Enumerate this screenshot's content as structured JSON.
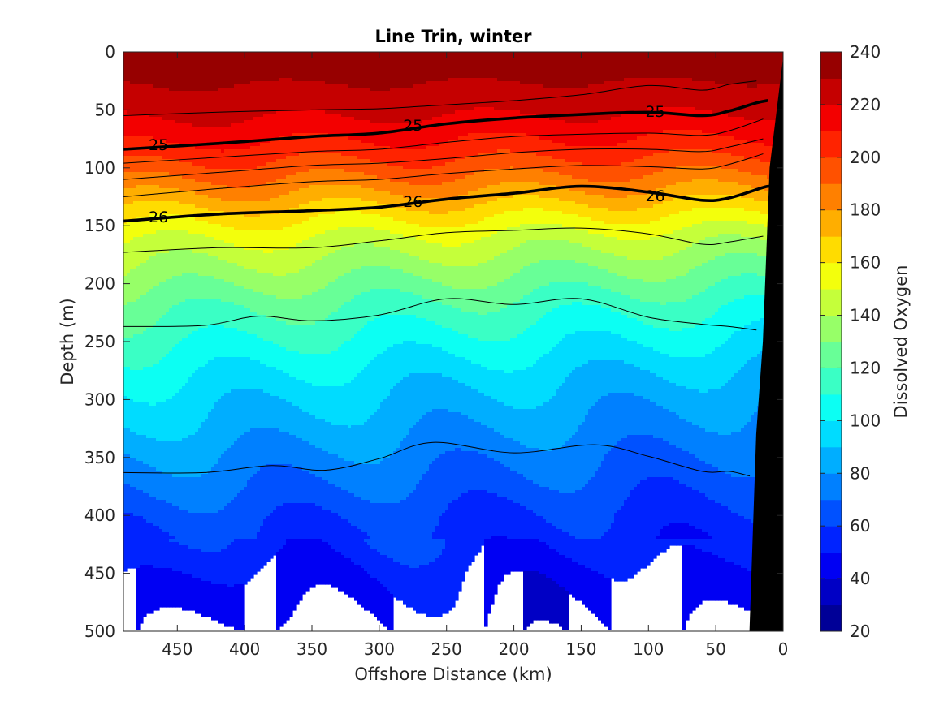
{
  "chart_data": {
    "type": "heatmap",
    "title": "Line Trin, winter",
    "xlabel": "Offshore Distance (km)",
    "ylabel": "Depth (m)",
    "colorbar_label": "Dissolved Oxygen",
    "xlim": [
      490,
      0
    ],
    "ylim": [
      0,
      500
    ],
    "x_direction": "reversed",
    "y_direction": "reversed",
    "x_ticks": [
      450,
      400,
      350,
      300,
      250,
      200,
      150,
      100,
      50,
      0
    ],
    "y_ticks": [
      0,
      50,
      100,
      150,
      200,
      250,
      300,
      350,
      400,
      450,
      500
    ],
    "x_tick_labels": [
      "450",
      "400",
      "350",
      "300",
      "250",
      "200",
      "150",
      "100",
      "50",
      "0"
    ],
    "y_tick_labels": [
      "0",
      "50",
      "100",
      "150",
      "200",
      "250",
      "300",
      "350",
      "400",
      "450",
      "500"
    ],
    "colorbar_ticks": [
      20,
      40,
      60,
      80,
      100,
      120,
      140,
      160,
      180,
      200,
      220,
      240
    ],
    "colorbar_tick_labels": [
      "20",
      "40",
      "60",
      "80",
      "100",
      "120",
      "140",
      "160",
      "180",
      "200",
      "220",
      "240"
    ],
    "colorbar_levels": [
      20,
      30,
      40,
      50,
      60,
      70,
      80,
      90,
      100,
      110,
      120,
      130,
      140,
      150,
      160,
      170,
      180,
      190,
      200,
      210,
      220,
      230,
      240
    ],
    "colormap": "jet",
    "oxygen_profile": {
      "depth": [
        0,
        20,
        40,
        60,
        80,
        100,
        120,
        140,
        160,
        180,
        200,
        220,
        250,
        280,
        300,
        330,
        350,
        380,
        400,
        430,
        450,
        480,
        500
      ],
      "value": [
        236,
        232,
        226,
        218,
        208,
        195,
        180,
        163,
        148,
        137,
        127,
        117,
        105,
        94,
        88,
        80,
        74,
        66,
        60,
        54,
        48,
        42,
        38
      ]
    },
    "density_contours": [
      {
        "level": "",
        "bold": false,
        "labeled": false,
        "points": [
          [
            490,
            55
          ],
          [
            420,
            52
          ],
          [
            350,
            50
          ],
          [
            300,
            49
          ],
          [
            270,
            47
          ],
          [
            200,
            42
          ],
          [
            150,
            37
          ],
          [
            100,
            29
          ],
          [
            60,
            33
          ],
          [
            40,
            28
          ],
          [
            20,
            25
          ]
        ]
      },
      {
        "level": "25",
        "bold": true,
        "labeled": true,
        "label_positions": [
          [
            464,
            80
          ],
          [
            275,
            63
          ],
          [
            95,
            51
          ]
        ],
        "points": [
          [
            490,
            84
          ],
          [
            420,
            79
          ],
          [
            350,
            73
          ],
          [
            300,
            70
          ],
          [
            250,
            62
          ],
          [
            200,
            57
          ],
          [
            150,
            54
          ],
          [
            100,
            52
          ],
          [
            60,
            55
          ],
          [
            40,
            51
          ],
          [
            20,
            44
          ],
          [
            12,
            42
          ]
        ]
      },
      {
        "level": "",
        "bold": false,
        "labeled": false,
        "points": [
          [
            490,
            96
          ],
          [
            420,
            91
          ],
          [
            350,
            86
          ],
          [
            300,
            84
          ],
          [
            250,
            78
          ],
          [
            200,
            73
          ],
          [
            150,
            71
          ],
          [
            100,
            70
          ],
          [
            60,
            72
          ],
          [
            40,
            68
          ],
          [
            15,
            58
          ]
        ]
      },
      {
        "level": "",
        "bold": false,
        "labeled": false,
        "points": [
          [
            490,
            110
          ],
          [
            420,
            104
          ],
          [
            350,
            98
          ],
          [
            300,
            96
          ],
          [
            250,
            92
          ],
          [
            200,
            87
          ],
          [
            150,
            84
          ],
          [
            100,
            84
          ],
          [
            60,
            86
          ],
          [
            40,
            82
          ],
          [
            15,
            75
          ]
        ]
      },
      {
        "level": "",
        "bold": false,
        "labeled": false,
        "points": [
          [
            490,
            125
          ],
          [
            420,
            118
          ],
          [
            350,
            112
          ],
          [
            300,
            110
          ],
          [
            250,
            105
          ],
          [
            200,
            101
          ],
          [
            150,
            98
          ],
          [
            100,
            99
          ],
          [
            60,
            101
          ],
          [
            40,
            97
          ],
          [
            15,
            88
          ]
        ]
      },
      {
        "level": "26",
        "bold": true,
        "labeled": true,
        "label_positions": [
          [
            464,
            142
          ],
          [
            275,
            129
          ],
          [
            95,
            124
          ]
        ],
        "points": [
          [
            490,
            146
          ],
          [
            420,
            140
          ],
          [
            350,
            137
          ],
          [
            300,
            134
          ],
          [
            250,
            127
          ],
          [
            200,
            122
          ],
          [
            150,
            116
          ],
          [
            100,
            121
          ],
          [
            60,
            128
          ],
          [
            40,
            126
          ],
          [
            15,
            117
          ],
          [
            10,
            116
          ]
        ]
      },
      {
        "level": "",
        "bold": false,
        "labeled": false,
        "points": [
          [
            490,
            173
          ],
          [
            420,
            169
          ],
          [
            350,
            169
          ],
          [
            300,
            163
          ],
          [
            250,
            156
          ],
          [
            200,
            154
          ],
          [
            150,
            152
          ],
          [
            100,
            157
          ],
          [
            60,
            166
          ],
          [
            40,
            164
          ],
          [
            15,
            159
          ]
        ]
      },
      {
        "level": "",
        "bold": false,
        "labeled": false,
        "points": [
          [
            490,
            237
          ],
          [
            430,
            236
          ],
          [
            390,
            228
          ],
          [
            350,
            232
          ],
          [
            300,
            227
          ],
          [
            250,
            213
          ],
          [
            200,
            218
          ],
          [
            150,
            213
          ],
          [
            100,
            229
          ],
          [
            60,
            235
          ],
          [
            40,
            237
          ],
          [
            20,
            240
          ]
        ]
      },
      {
        "level": "",
        "bold": false,
        "labeled": false,
        "points": [
          [
            490,
            363
          ],
          [
            430,
            363
          ],
          [
            380,
            357
          ],
          [
            340,
            361
          ],
          [
            300,
            351
          ],
          [
            260,
            337
          ],
          [
            200,
            346
          ],
          [
            140,
            339
          ],
          [
            100,
            349
          ],
          [
            60,
            362
          ],
          [
            40,
            362
          ],
          [
            25,
            366
          ]
        ]
      }
    ],
    "bathymetry": {
      "color": "#000000",
      "points": [
        [
          0,
          5
        ],
        [
          10,
          100
        ],
        [
          15,
          250
        ],
        [
          20,
          330
        ],
        [
          25,
          500
        ],
        [
          0,
          500
        ]
      ]
    }
  }
}
